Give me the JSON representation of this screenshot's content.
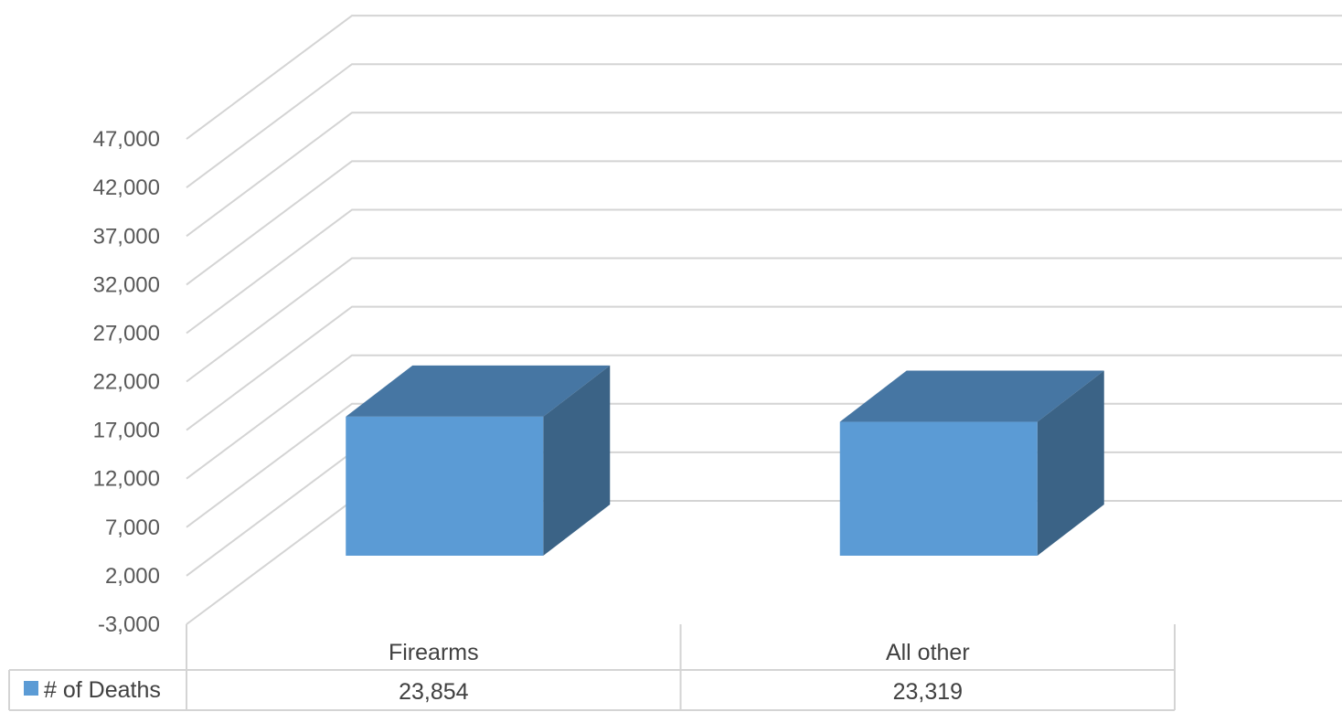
{
  "chart_data": {
    "type": "bar",
    "title": "",
    "xlabel": "",
    "ylabel": "",
    "categories": [
      "Firearms",
      "All other"
    ],
    "series": [
      {
        "name": "# of Deaths",
        "values": [
          23854,
          23319
        ],
        "value_labels": [
          "23,854",
          "23,319"
        ],
        "color": "#5b9bd5"
      }
    ],
    "ylim": [
      -3000,
      47000
    ],
    "y_ticks": [
      "-3,000",
      "2,000",
      "7,000",
      "12,000",
      "17,000",
      "22,000",
      "27,000",
      "32,000",
      "37,000",
      "42,000",
      "47,000"
    ],
    "grid": true,
    "legend": "data-table",
    "style": "3d-column"
  }
}
